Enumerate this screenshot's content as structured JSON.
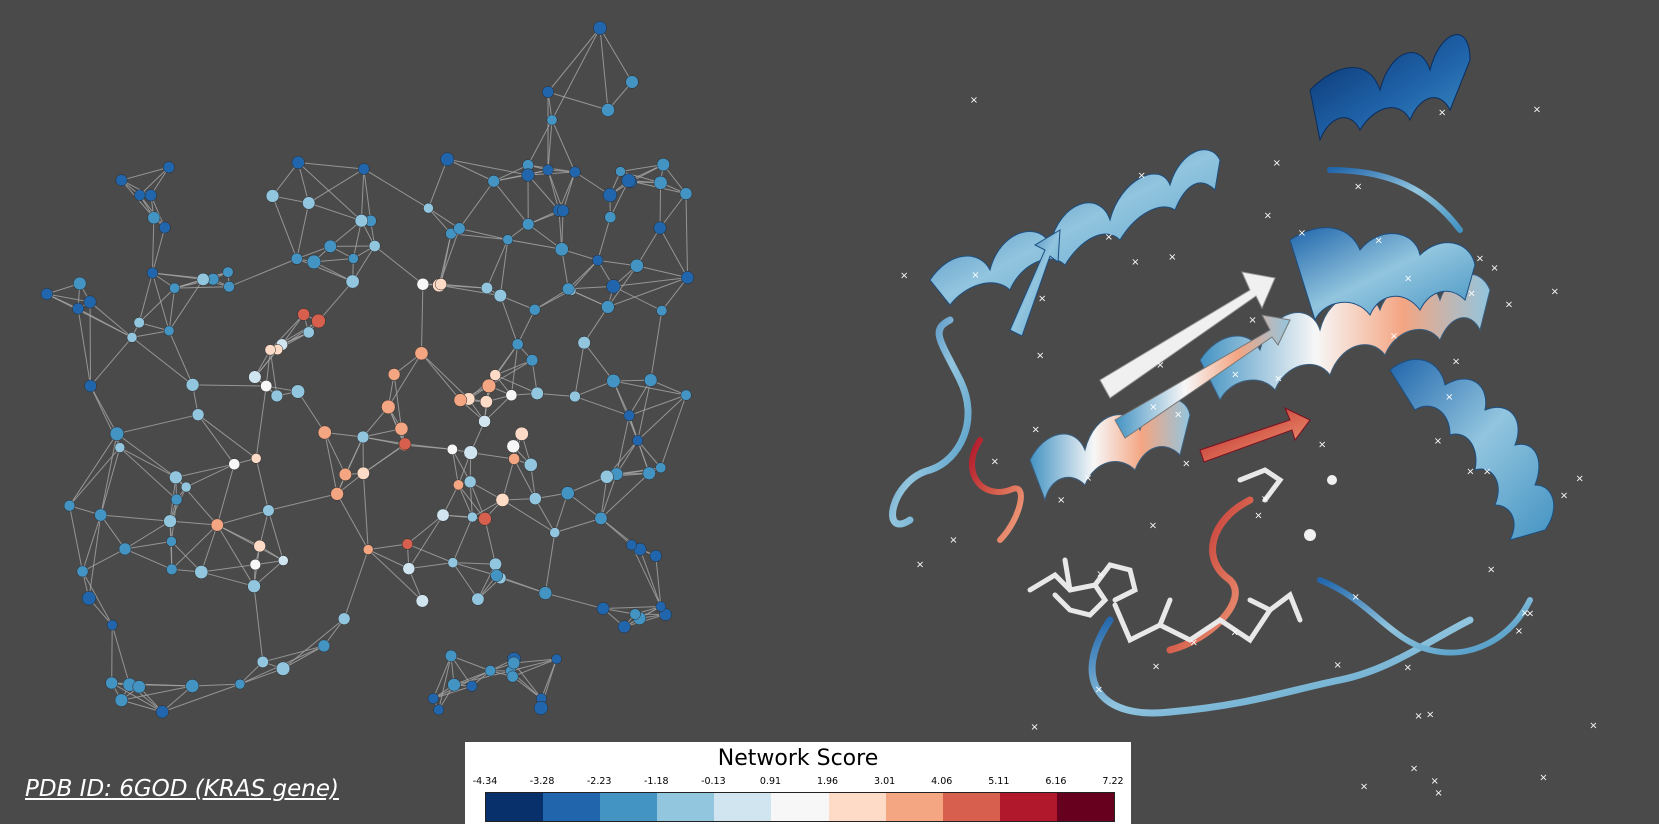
{
  "caption": "PDB ID: 6GOD (KRAS gene)",
  "colorbar": {
    "title": "Network Score",
    "ticks": [
      "-4.34",
      "-3.28",
      "-2.23",
      "-1.18",
      "-0.13",
      "0.91",
      "1.96",
      "3.01",
      "4.06",
      "5.11",
      "6.16",
      "7.22"
    ],
    "bin_colors": [
      "#08306b",
      "#2166ac",
      "#4393c3",
      "#92c5de",
      "#d1e5f0",
      "#f7f7f7",
      "#fddbc7",
      "#f4a582",
      "#d6604d",
      "#b2182b",
      "#67001f"
    ]
  },
  "colors": {
    "background": "#4a4a4a",
    "edge": "#a8a8a8",
    "marker": "#ffffff"
  }
}
